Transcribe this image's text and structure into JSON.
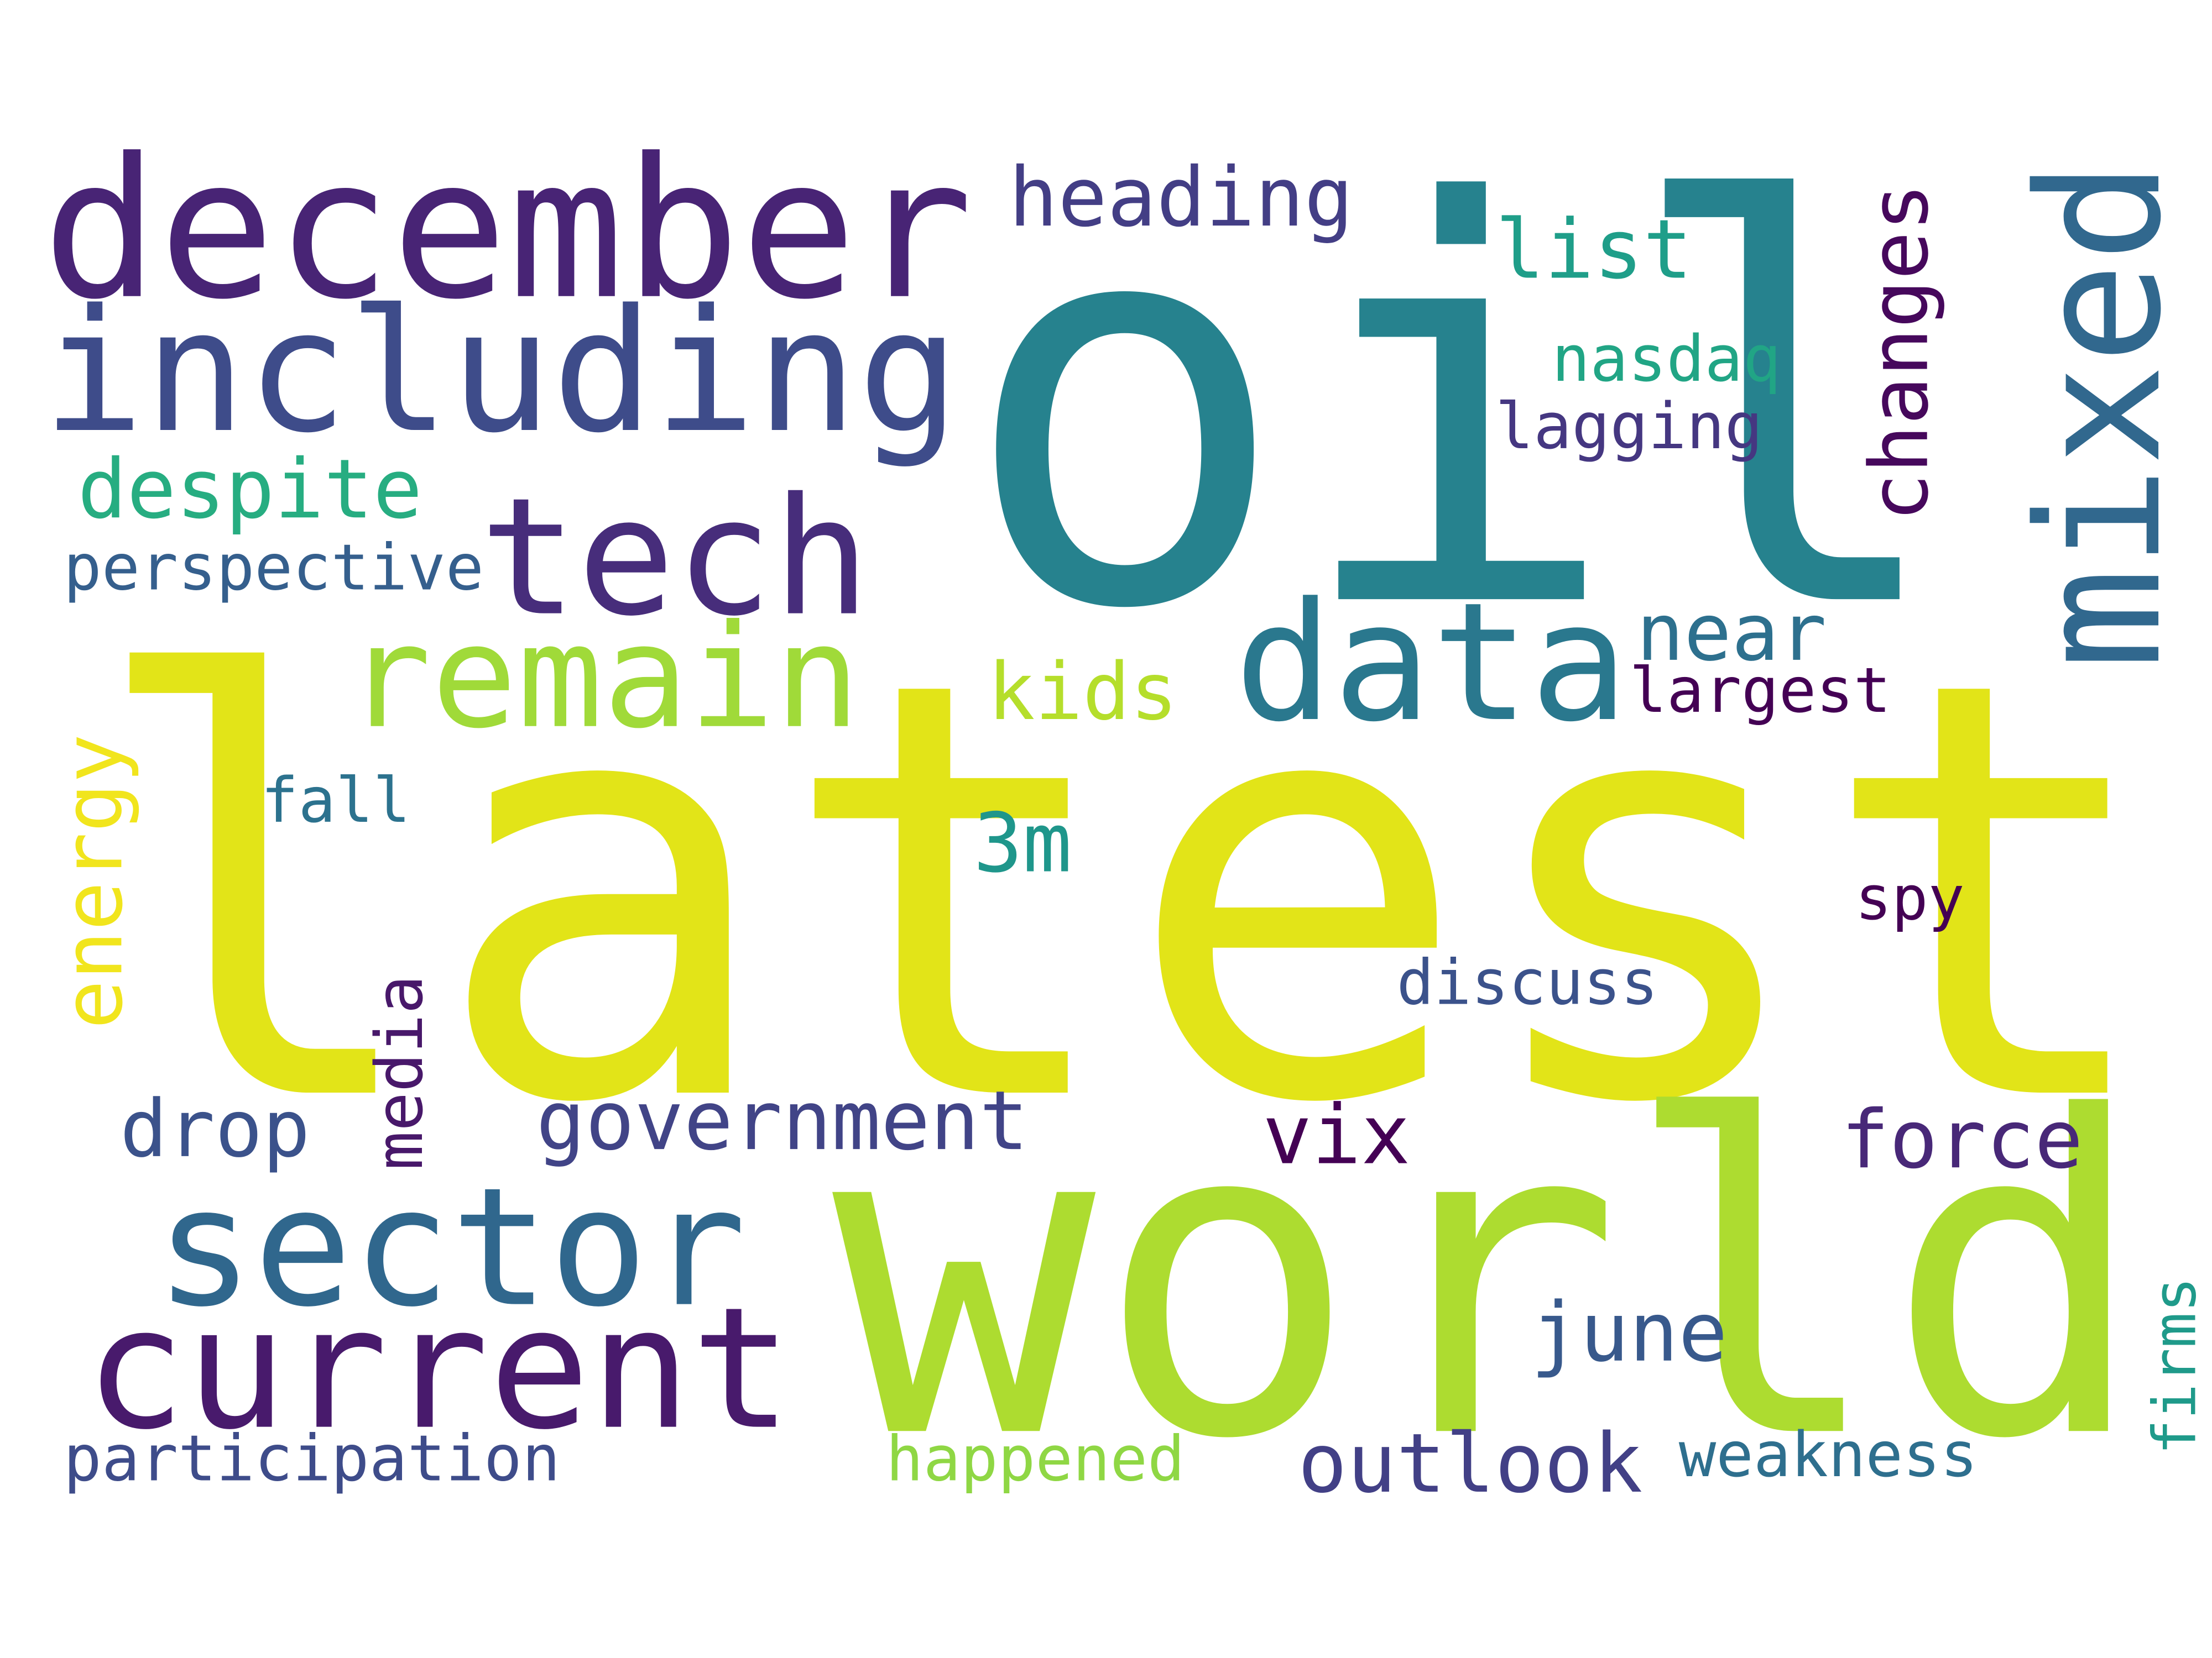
{
  "words": [
    "latest",
    "oil",
    "world",
    "december",
    "including",
    "tech",
    "remain",
    "data",
    "mixed",
    "heading",
    "list",
    "changes",
    "nasdaq",
    "lagging",
    "despite",
    "perspective",
    "near",
    "largest",
    "kids",
    "energy",
    "fall",
    "3m",
    "spy",
    "discuss",
    "media",
    "drop",
    "government",
    "vix",
    "force",
    "sector",
    "current",
    "june",
    "firms",
    "participation",
    "happened",
    "outlook",
    "weakness"
  ]
}
